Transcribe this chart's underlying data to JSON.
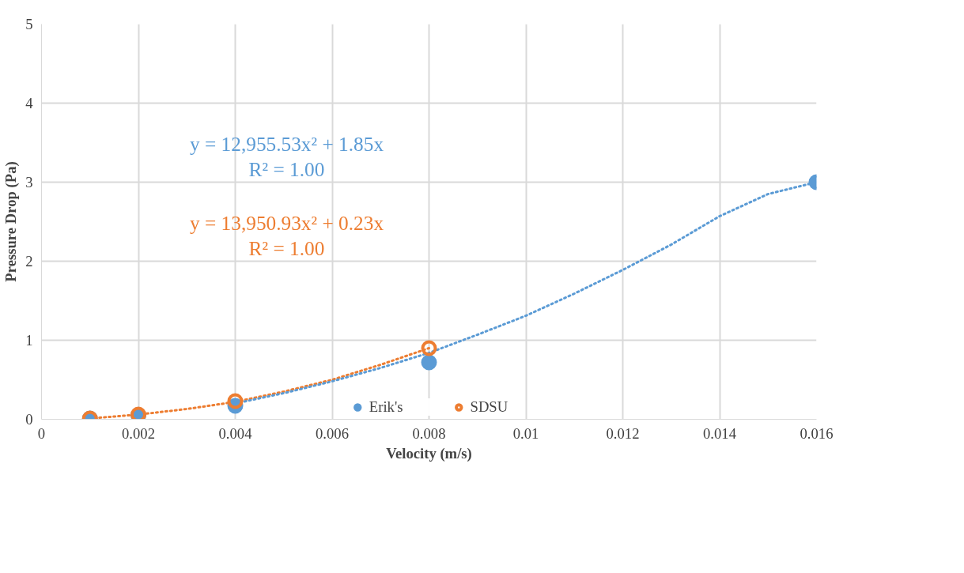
{
  "chart_data": {
    "type": "scatter",
    "xlabel": "Velocity (m/s)",
    "ylabel": "Pressure Drop (Pa)",
    "xlim": [
      0,
      0.016
    ],
    "xticks": [
      0,
      0.002,
      0.004,
      0.006,
      0.008,
      0.01,
      0.012,
      0.014,
      0.016
    ],
    "ylim": [
      0,
      5
    ],
    "yticks": [
      0,
      1,
      2,
      3,
      4,
      5
    ],
    "grid": true,
    "legend": "bottom",
    "marker": "circle",
    "series": [
      {
        "type": "line",
        "marker": "none",
        "line_style": "dotted",
        "color": "#ed7d31",
        "x": [
          0.001,
          0.002,
          0.003,
          0.004,
          0.005,
          0.006,
          0.007,
          0.008
        ],
        "values": [
          0.01,
          0.06,
          0.13,
          0.22,
          0.35,
          0.5,
          0.69,
          0.9
        ]
      },
      {
        "type": "line",
        "marker": "none",
        "line_style": "dotted",
        "color": "#5b9bd5",
        "x": [
          0.004,
          0.005,
          0.006,
          0.007,
          0.008,
          0.009,
          0.01,
          0.011,
          0.012,
          0.013,
          0.014,
          0.015,
          0.016
        ],
        "values": [
          0.2,
          0.33,
          0.48,
          0.65,
          0.84,
          1.07,
          1.31,
          1.59,
          1.89,
          2.21,
          2.57,
          2.85,
          3.0
        ]
      },
      {
        "name": "Erik's",
        "color": "#5b9bd5",
        "x": [
          0.001,
          0.002,
          0.004,
          0.008,
          0.016
        ],
        "values": [
          0.01,
          0.05,
          0.17,
          0.72,
          3.0
        ]
      },
      {
        "name": "SDSU",
        "color": "#ed7d31",
        "x": [
          0.001,
          0.002,
          0.004,
          0.008
        ],
        "values": [
          0.01,
          0.06,
          0.23,
          0.9
        ]
      }
    ],
    "annotations": [
      "y = 12,955.53x² + 1.85x\nR² = 1.00",
      "y = 13,950.93x² + 0.23x\nR² = 1.00"
    ]
  }
}
